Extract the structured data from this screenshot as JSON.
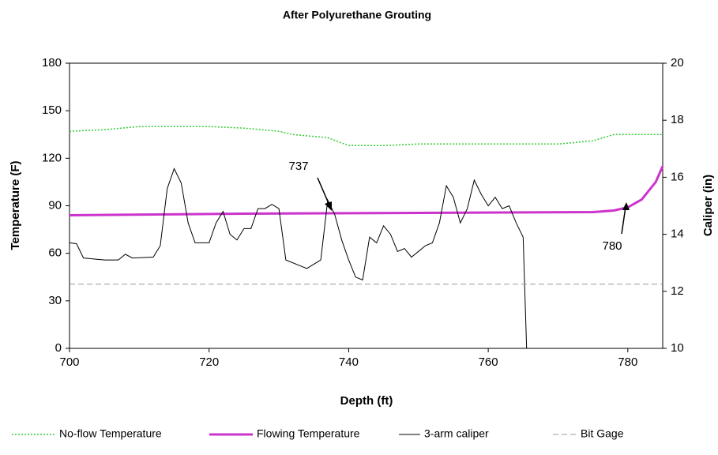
{
  "chart_data": {
    "type": "line",
    "title": "After Polyurethane Grouting",
    "xlabel": "Depth (ft)",
    "ylabel": "Temperature (F)",
    "y2label": "Caliper (in)",
    "xlim": [
      700,
      785
    ],
    "xticks": [
      700,
      720,
      740,
      760,
      780
    ],
    "ylim": [
      0,
      180
    ],
    "yticks": [
      0,
      30,
      60,
      90,
      120,
      150,
      180
    ],
    "y2lim": [
      10,
      20
    ],
    "y2ticks": [
      10,
      12,
      14,
      16,
      18,
      20
    ],
    "annotations": [
      "737",
      "780"
    ],
    "series": [
      {
        "name": "No-flow Temperature",
        "color": "#33cc33",
        "style": "dotted",
        "width": 1.5,
        "x": [
          700,
          705,
          710,
          720,
          725,
          730,
          732,
          737,
          740,
          745,
          750,
          760,
          770,
          775,
          778,
          785
        ],
        "values": [
          137,
          138,
          140,
          140,
          139,
          137,
          135,
          133,
          128,
          128,
          129,
          129,
          129,
          131,
          135,
          135
        ]
      },
      {
        "name": "Flowing Temperature",
        "color": "#cc33cc",
        "style": "solid",
        "width": 3,
        "x": [
          700,
          725,
          775,
          778,
          780,
          782,
          784,
          785
        ],
        "values": [
          84,
          85,
          86,
          87,
          89,
          94,
          105,
          115
        ]
      },
      {
        "name": "3-arm caliper",
        "color": "#000000",
        "style": "solid",
        "width": 1,
        "axis": "y2",
        "x": [
          700,
          701,
          702,
          705,
          707,
          708,
          709,
          712,
          713,
          714,
          715,
          716,
          717,
          718,
          720,
          721,
          722,
          723,
          724,
          725,
          726,
          727,
          728,
          729,
          730,
          731,
          733,
          734,
          736,
          737,
          738,
          739,
          740,
          741,
          742,
          743,
          744,
          745,
          746,
          747,
          748,
          749,
          750,
          751,
          752,
          753,
          754,
          755,
          756,
          757,
          758,
          759,
          760,
          761,
          762,
          763,
          764,
          765,
          765.5
        ],
        "values": [
          13.7,
          13.67,
          13.17,
          13.1,
          13.1,
          13.3,
          13.17,
          13.2,
          13.6,
          15.6,
          16.3,
          15.8,
          14.4,
          13.7,
          13.7,
          14.4,
          14.8,
          14.0,
          13.8,
          14.2,
          14.2,
          14.9,
          14.9,
          15.05,
          14.9,
          13.1,
          12.9,
          12.8,
          13.1,
          15.2,
          14.7,
          13.8,
          13.1,
          12.5,
          12.4,
          13.9,
          13.7,
          14.3,
          14.0,
          13.4,
          13.5,
          13.2,
          13.4,
          13.6,
          13.7,
          14.4,
          15.7,
          15.3,
          14.4,
          14.9,
          15.9,
          15.4,
          15.0,
          15.3,
          14.9,
          15.0,
          14.4,
          13.9,
          10
        ]
      },
      {
        "name": "Bit Gage",
        "color": "#999999",
        "style": "dashed",
        "width": 1,
        "axis": "y2",
        "x": [
          700,
          785
        ],
        "values": [
          12.25,
          12.25
        ]
      }
    ]
  }
}
